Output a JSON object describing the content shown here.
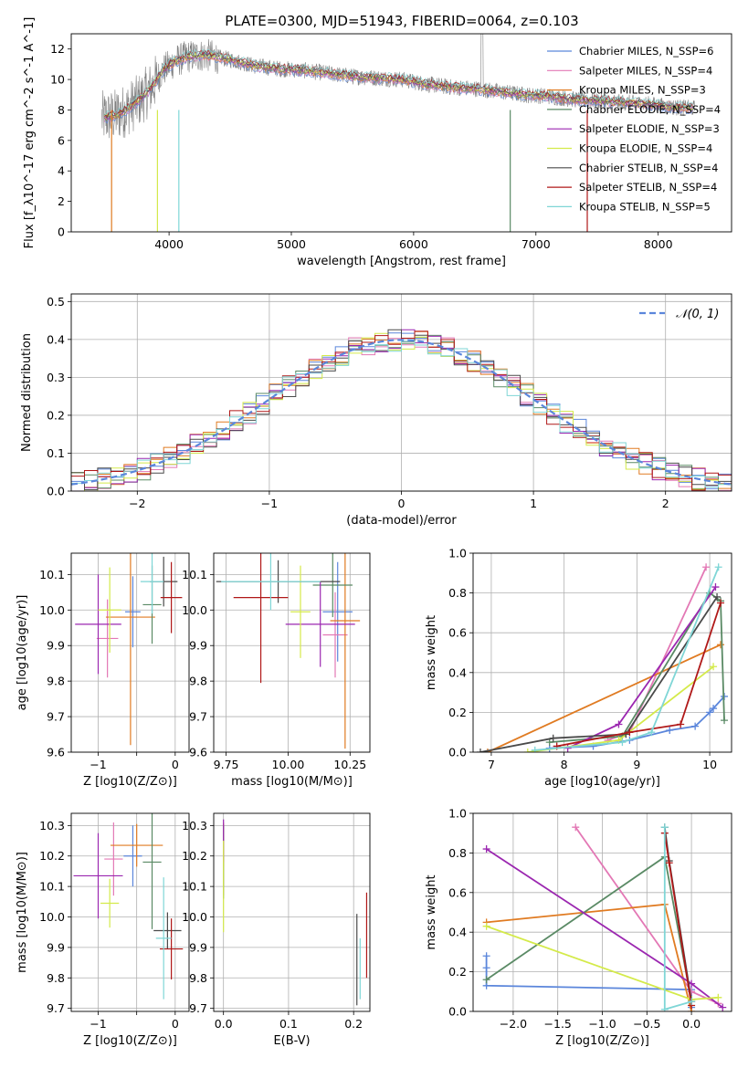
{
  "figure": {
    "title": "PLATE=0300, MJD=51943, FIBERID=0064, z=0.103"
  },
  "chart_data": [
    {
      "id": "spectrum",
      "type": "line",
      "xlabel": "wavelength [Angstrom, rest frame]",
      "ylabel": "Flux [f_λ10^-17 erg cm^-2 s^-1 A^-1]",
      "xlim": [
        3200,
        8600
      ],
      "ylim": [
        0,
        13
      ],
      "xticks": [
        4000,
        5000,
        6000,
        7000,
        8000
      ],
      "yticks": [
        0,
        2,
        4,
        6,
        8,
        10,
        12
      ],
      "grid": false,
      "legend_position": "top-right",
      "data_color": "#808080",
      "observed_profile": {
        "x": [
          3450,
          3550,
          3650,
          3750,
          3850,
          3950,
          4050,
          4150,
          4300,
          4500,
          4700,
          4900,
          5100,
          5300,
          5500,
          5700,
          5900,
          6100,
          6300,
          6500,
          6700,
          6900,
          7100,
          7300,
          7500,
          7700,
          7900,
          8100,
          8300
        ],
        "y": [
          7.5,
          7.6,
          8.0,
          8.6,
          9.4,
          10.6,
          11.2,
          11.5,
          11.6,
          11.3,
          10.9,
          10.7,
          10.6,
          10.4,
          10.2,
          10.1,
          10.0,
          9.7,
          9.5,
          9.4,
          9.2,
          9.0,
          8.9,
          8.7,
          8.6,
          8.5,
          8.4,
          8.2,
          8.1
        ]
      },
      "series": [
        {
          "name": "Chabrier MILES, N_SSP=6",
          "color": "#5b86db"
        },
        {
          "name": "Salpeter MILES, N_SSP=4",
          "color": "#e378b5"
        },
        {
          "name": "Kroupa MILES, N_SSP=3",
          "color": "#e07b22"
        },
        {
          "name": "Chabrier ELODIE, N_SSP=4",
          "color": "#5a8a65"
        },
        {
          "name": "Salpeter ELODIE, N_SSP=3",
          "color": "#9b27b0"
        },
        {
          "name": "Kroupa ELODIE, N_SSP=4",
          "color": "#d4ea4a"
        },
        {
          "name": "Chabrier STELIB, N_SSP=4",
          "color": "#4a4a4a"
        },
        {
          "name": "Salpeter STELIB, N_SSP=4",
          "color": "#b01818"
        },
        {
          "name": "Kroupa STELIB, N_SSP=5",
          "color": "#7fd6d6"
        }
      ]
    },
    {
      "id": "residuals",
      "type": "line",
      "xlabel": "(data-model)/error",
      "ylabel": "Normed distribution",
      "xlim": [
        -2.5,
        2.5
      ],
      "ylim": [
        0,
        0.52
      ],
      "xticks": [
        -2,
        -1,
        0,
        1,
        2
      ],
      "yticks": [
        0.0,
        0.1,
        0.2,
        0.3,
        0.4,
        0.5
      ],
      "grid": true,
      "legend_position": "top-right",
      "legend": [
        "𝒩(0, 1)"
      ],
      "normal_color": "#5b86db",
      "bin_width": 0.1
    },
    {
      "id": "age_vs_Z",
      "type": "scatter",
      "xlabel": "Z [log10(Z/Z⊙)]",
      "ylabel": "age  [log10(age/yr)]",
      "xlim": [
        -1.35,
        0.18
      ],
      "ylim": [
        9.6,
        10.16
      ],
      "xticks": [
        -1,
        -0.5,
        0
      ],
      "xticklabels": [
        "−1",
        "",
        "0"
      ],
      "yticks": [
        9.6,
        9.7,
        9.8,
        9.9,
        10.0,
        10.1
      ],
      "grid": true,
      "points": [
        {
          "series": 0,
          "x": -0.55,
          "y": 9.995,
          "xerr": 0.1,
          "yerr": 0.1
        },
        {
          "series": 1,
          "x": -0.88,
          "y": 9.92,
          "xerr": 0.14,
          "yerr": 0.11
        },
        {
          "series": 2,
          "x": -0.58,
          "y": 9.98,
          "xerr": 0.32,
          "yerr": 0.36
        },
        {
          "series": 3,
          "x": -0.3,
          "y": 10.015,
          "xerr": 0.12,
          "yerr": 0.11
        },
        {
          "series": 4,
          "x": -1.0,
          "y": 9.96,
          "xerr": 0.3,
          "yerr": 0.14
        },
        {
          "series": 5,
          "x": -0.85,
          "y": 10.0,
          "xerr": 0.15,
          "yerr": 0.12
        },
        {
          "series": 6,
          "x": -0.15,
          "y": 10.08,
          "xerr": 0.18,
          "yerr": 0.07
        },
        {
          "series": 7,
          "x": -0.05,
          "y": 10.035,
          "xerr": 0.14,
          "yerr": 0.1
        },
        {
          "series": 8,
          "x": -0.3,
          "y": 10.08,
          "xerr": 0.15,
          "yerr": 0.09
        }
      ]
    },
    {
      "id": "age_vs_mass",
      "type": "scatter",
      "xlabel": "mass [log10(M/M⊙)]",
      "ylabel": "",
      "xlim": [
        9.7,
        10.33
      ],
      "ylim": [
        9.6,
        10.16
      ],
      "xticks": [
        9.75,
        10.0,
        10.25
      ],
      "xticklabels": [
        "9.75",
        "10.00",
        "10.25"
      ],
      "yticks": [
        9.6,
        9.7,
        9.8,
        9.9,
        10.0,
        10.1
      ],
      "grid": true,
      "points": [
        {
          "series": 0,
          "x": 10.2,
          "y": 9.995,
          "xerr": 0.06,
          "yerr": 0.14
        },
        {
          "series": 1,
          "x": 10.19,
          "y": 9.93,
          "xerr": 0.05,
          "yerr": 0.12
        },
        {
          "series": 2,
          "x": 10.23,
          "y": 9.97,
          "xerr": 0.06,
          "yerr": 0.36
        },
        {
          "series": 3,
          "x": 10.18,
          "y": 10.07,
          "xerr": 0.08,
          "yerr": 0.09
        },
        {
          "series": 4,
          "x": 10.13,
          "y": 9.96,
          "xerr": 0.14,
          "yerr": 0.12
        },
        {
          "series": 5,
          "x": 10.05,
          "y": 9.995,
          "xerr": 0.04,
          "yerr": 0.13
        },
        {
          "series": 6,
          "x": 9.96,
          "y": 10.08,
          "xerr": 0.25,
          "yerr": 0.06
        },
        {
          "series": 7,
          "x": 9.89,
          "y": 10.035,
          "xerr": 0.11,
          "yerr": 0.24
        },
        {
          "series": 8,
          "x": 9.93,
          "y": 10.08,
          "xerr": 0.2,
          "yerr": 0.08
        }
      ]
    },
    {
      "id": "massweight_vs_age",
      "type": "line",
      "xlabel": "age  [log10(age/yr)]",
      "ylabel": "mass weight",
      "xlim": [
        6.75,
        10.3
      ],
      "ylim": [
        0,
        1.0
      ],
      "xticks": [
        7,
        8,
        9,
        10
      ],
      "yticks": [
        0.0,
        0.2,
        0.4,
        0.6,
        0.8,
        1.0
      ],
      "grid": true,
      "series": [
        {
          "series": 0,
          "x": [
            7.8,
            8.4,
            8.9,
            9.45,
            9.8,
            10.0,
            10.05,
            10.2
          ],
          "y": [
            0.02,
            0.03,
            0.06,
            0.11,
            0.13,
            0.2,
            0.22,
            0.28
          ]
        },
        {
          "series": 1,
          "x": [
            8.6,
            8.9,
            9.95
          ],
          "y": [
            0.06,
            0.1,
            0.93
          ]
        },
        {
          "series": 2,
          "x": [
            6.95,
            10.15
          ],
          "y": [
            0.0,
            0.54
          ]
        },
        {
          "series": 3,
          "x": [
            7.8,
            8.8,
            10.0,
            10.15,
            10.2
          ],
          "y": [
            0.05,
            0.08,
            0.8,
            0.76,
            0.16
          ]
        },
        {
          "series": 4,
          "x": [
            8.05,
            8.75,
            10.08
          ],
          "y": [
            0.02,
            0.14,
            0.83
          ]
        },
        {
          "series": 5,
          "x": [
            7.5,
            8.75,
            10.05
          ],
          "y": [
            0.0,
            0.06,
            0.43
          ]
        },
        {
          "series": 6,
          "x": [
            6.85,
            7.85,
            8.85,
            10.1
          ],
          "y": [
            0.0,
            0.07,
            0.09,
            0.78
          ]
        },
        {
          "series": 7,
          "x": [
            7.9,
            8.9,
            9.6,
            10.15
          ],
          "y": [
            0.03,
            0.1,
            0.14,
            0.75
          ]
        },
        {
          "series": 8,
          "x": [
            7.6,
            8.8,
            9.2,
            10.12
          ],
          "y": [
            0.01,
            0.05,
            0.1,
            0.93
          ]
        }
      ]
    },
    {
      "id": "mass_vs_Z",
      "type": "scatter",
      "xlabel": "Z [log10(Z/Z⊙)]",
      "ylabel": "mass [log10(M/M⊙)]",
      "xlim": [
        -1.35,
        0.18
      ],
      "ylim": [
        9.69,
        10.34
      ],
      "xticks": [
        -1,
        -0.5,
        0
      ],
      "xticklabels": [
        "−1",
        "",
        "0"
      ],
      "yticks": [
        9.7,
        9.8,
        9.9,
        10.0,
        10.1,
        10.2,
        10.3
      ],
      "grid": true,
      "points": [
        {
          "series": 0,
          "x": -0.55,
          "y": 10.2,
          "xerr": 0.12,
          "yerr": 0.1
        },
        {
          "series": 1,
          "x": -0.8,
          "y": 10.19,
          "xerr": 0.12,
          "yerr": 0.12
        },
        {
          "series": 2,
          "x": -0.5,
          "y": 10.235,
          "xerr": 0.34,
          "yerr": 0.07
        },
        {
          "series": 3,
          "x": -0.3,
          "y": 10.18,
          "xerr": 0.12,
          "yerr": 0.22
        },
        {
          "series": 4,
          "x": -1.0,
          "y": 10.135,
          "xerr": 0.32,
          "yerr": 0.14
        },
        {
          "series": 5,
          "x": -0.85,
          "y": 10.045,
          "xerr": 0.12,
          "yerr": 0.08
        },
        {
          "series": 6,
          "x": -0.1,
          "y": 9.955,
          "xerr": 0.18,
          "yerr": 0.06
        },
        {
          "series": 7,
          "x": -0.05,
          "y": 9.895,
          "xerr": 0.15,
          "yerr": 0.1
        },
        {
          "series": 8,
          "x": -0.15,
          "y": 9.93,
          "xerr": 0.1,
          "yerr": 0.2
        }
      ]
    },
    {
      "id": "mass_vs_ebv",
      "type": "scatter",
      "xlabel": "E(B-V)",
      "ylabel": "",
      "xlim": [
        -0.015,
        0.225
      ],
      "ylim": [
        9.69,
        10.34
      ],
      "xticks": [
        0.0,
        0.1,
        0.2
      ],
      "xticklabels": [
        "0.0",
        "0.1",
        "0.2"
      ],
      "yticks": [
        9.7,
        9.8,
        9.9,
        10.0,
        10.1,
        10.2,
        10.3
      ],
      "grid": true,
      "points": [
        {
          "series": 0,
          "x": 0.0,
          "y": 10.2,
          "xerr": 0,
          "yerr": 0.1
        },
        {
          "series": 1,
          "x": 0.0,
          "y": 10.19,
          "xerr": 0,
          "yerr": 0.12
        },
        {
          "series": 2,
          "x": 0.0,
          "y": 10.235,
          "xerr": 0,
          "yerr": 0.07
        },
        {
          "series": 3,
          "x": 0.0,
          "y": 10.18,
          "xerr": 0,
          "yerr": 0.12
        },
        {
          "series": 4,
          "x": 0.0,
          "y": 10.25,
          "xerr": 0,
          "yerr": 0.07
        },
        {
          "series": 5,
          "x": 0.0,
          "y": 10.1,
          "xerr": 0,
          "yerr": 0.15
        },
        {
          "series": 6,
          "x": 0.205,
          "y": 9.86,
          "xerr": 0,
          "yerr": 0.15
        },
        {
          "series": 7,
          "x": 0.22,
          "y": 9.94,
          "xerr": 0,
          "yerr": 0.14
        },
        {
          "series": 8,
          "x": 0.21,
          "y": 9.83,
          "xerr": 0,
          "yerr": 0.1
        }
      ]
    },
    {
      "id": "massweight_vs_Z",
      "type": "line",
      "xlabel": "Z [log10(Z/Z⊙)]",
      "ylabel": "mass weight",
      "xlim": [
        -2.45,
        0.45
      ],
      "ylim": [
        0,
        1.0
      ],
      "xticks": [
        -2.0,
        -1.5,
        -1.0,
        -0.5,
        0.0
      ],
      "xticklabels": [
        "−2.0",
        "−1.5",
        "−1.0",
        "−0.5",
        "0.0"
      ],
      "yticks": [
        0.0,
        0.2,
        0.4,
        0.6,
        0.8,
        1.0
      ],
      "grid": true,
      "series": [
        {
          "series": 0,
          "x": [
            -2.3,
            -2.3,
            -2.3,
            0.0,
            0.0,
            0.0
          ],
          "y": [
            0.28,
            0.22,
            0.13,
            0.11,
            0.06,
            0.02
          ]
        },
        {
          "series": 1,
          "x": [
            -1.3,
            0.0,
            0.3
          ],
          "y": [
            0.93,
            0.1,
            0.04
          ]
        },
        {
          "series": 2,
          "x": [
            -2.3,
            -0.3,
            0.0
          ],
          "y": [
            0.45,
            0.54,
            0.0
          ]
        },
        {
          "series": 3,
          "x": [
            -2.3,
            -0.3,
            0.0
          ],
          "y": [
            0.16,
            0.78,
            0.05
          ]
        },
        {
          "series": 4,
          "x": [
            -2.3,
            0.0,
            0.35
          ],
          "y": [
            0.82,
            0.14,
            0.02
          ]
        },
        {
          "series": 5,
          "x": [
            -2.3,
            0.0,
            0.3
          ],
          "y": [
            0.43,
            0.06,
            0.07
          ]
        },
        {
          "series": 6,
          "x": [
            -0.3,
            -0.25,
            0.0
          ],
          "y": [
            0.93,
            0.76,
            0.05
          ]
        },
        {
          "series": 7,
          "x": [
            -0.3,
            -0.25,
            0.0
          ],
          "y": [
            0.9,
            0.75,
            0.03
          ]
        },
        {
          "series": 8,
          "x": [
            -0.3,
            -0.3,
            0.0
          ],
          "y": [
            0.93,
            0.01,
            0.05
          ]
        }
      ]
    }
  ]
}
